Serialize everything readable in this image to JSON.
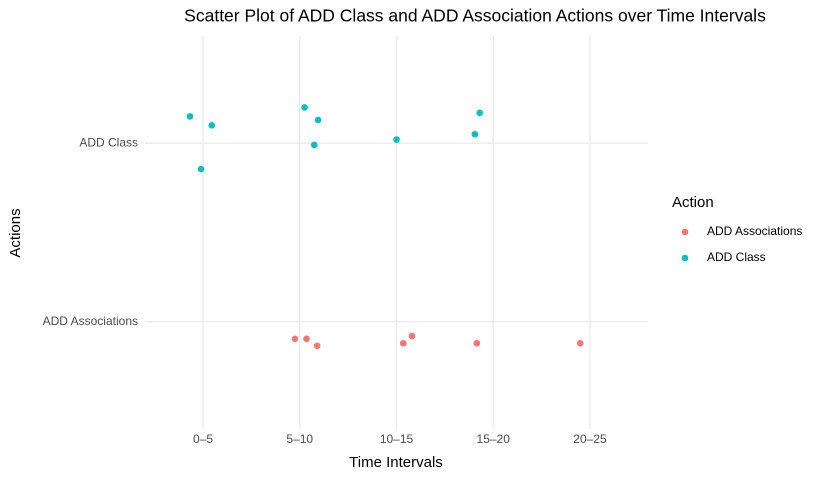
{
  "chart_data": {
    "type": "scatter",
    "title": "Scatter Plot of ADD Class and ADD Association Actions over Time Intervals",
    "x_label": "Time Intervals",
    "y_label": "Actions",
    "legend_title": "Action",
    "xlim": [
      0.4,
      5.6
    ],
    "xticks": [
      {
        "value": 1,
        "label": "0–5"
      },
      {
        "value": 2,
        "label": "5–10"
      },
      {
        "value": 3,
        "label": "10–15"
      },
      {
        "value": 4,
        "label": "15–20"
      },
      {
        "value": 5,
        "label": "20–25"
      }
    ],
    "ylim": [
      0.4,
      2.6
    ],
    "yticks": [
      {
        "value": 1,
        "label": "ADD Associations"
      },
      {
        "value": 2,
        "label": "ADD Class"
      }
    ],
    "grid": true,
    "legend": "right",
    "series": [
      {
        "name": "ADD Associations",
        "color": "#F8766D",
        "x": [
          1.95,
          2.07,
          2.18,
          3.07,
          3.16,
          3.83,
          4.9
        ],
        "values": [
          0.905,
          0.905,
          0.866,
          0.88,
          0.92,
          0.88,
          0.88
        ]
      },
      {
        "name": "ADD Class",
        "color": "#00BFC4",
        "x": [
          0.865,
          1.09,
          0.98,
          2.05,
          2.19,
          2.15,
          3.0,
          3.86,
          3.81
        ],
        "values": [
          2.15,
          2.1,
          1.855,
          2.2,
          2.13,
          1.99,
          2.02,
          2.17,
          2.05
        ]
      }
    ]
  }
}
